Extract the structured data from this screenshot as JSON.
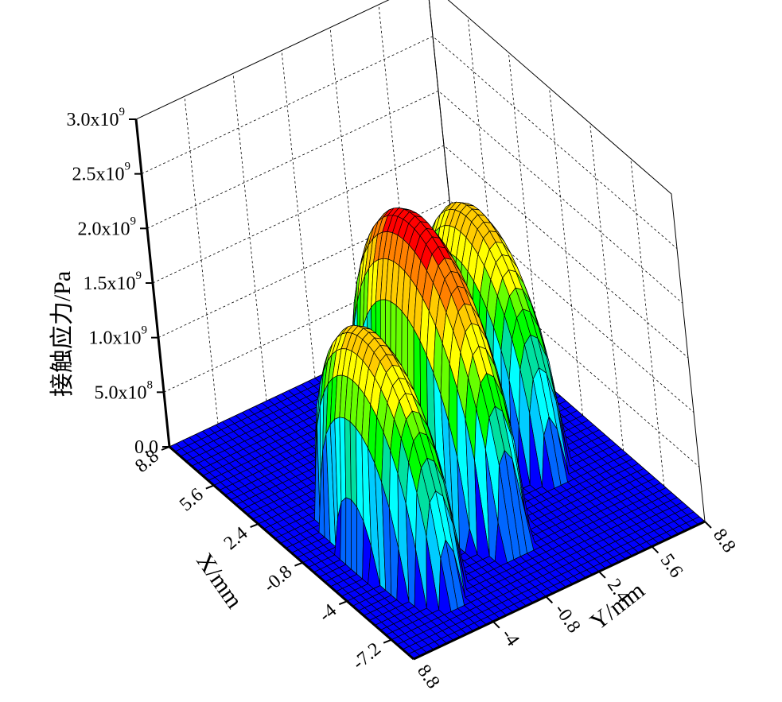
{
  "chart_data": {
    "type": "surface3d",
    "title": "",
    "xlabel": "X/mm",
    "ylabel": "Y/mm",
    "zlabel": "接触应力/Pa",
    "xlim": [
      -8.8,
      8.8
    ],
    "ylim": [
      -8.8,
      8.8
    ],
    "zlim": [
      0,
      3000000000
    ],
    "x_ticks": [
      "8.8",
      "5.6",
      "2.4",
      "-0.8",
      "-4",
      "-7.2"
    ],
    "y_ticks": [
      "-4",
      "-0.8",
      "2.4",
      "5.6",
      "8.8"
    ],
    "z_ticks": [
      {
        "mantissa": "0.0",
        "exp": ""
      },
      {
        "mantissa": "5.0x10",
        "exp": "8"
      },
      {
        "mantissa": "1.0x10",
        "exp": "9"
      },
      {
        "mantissa": "1.5x10",
        "exp": "9"
      },
      {
        "mantissa": "2.0x10",
        "exp": "9"
      },
      {
        "mantissa": "2.5x10",
        "exp": "9"
      },
      {
        "mantissa": "3.0x10",
        "exp": "9"
      }
    ],
    "grid": true,
    "colormap": [
      "#0000ff",
      "#0066ff",
      "#00ccff",
      "#00ffff",
      "#00e0a0",
      "#00ff00",
      "#66ff00",
      "#ffff00",
      "#ffcc00",
      "#ff8000",
      "#ff0000"
    ],
    "peaks": [
      {
        "name": "",
        "x": -2.4,
        "y": -4.8,
        "peak_stress": 2000000000
      },
      {
        "name": "",
        "x": -0.4,
        "y": 0.0,
        "peak_stress": 2500000000
      },
      {
        "name": "",
        "x": 1.6,
        "y": 4.8,
        "peak_stress": 2000000000
      }
    ]
  }
}
